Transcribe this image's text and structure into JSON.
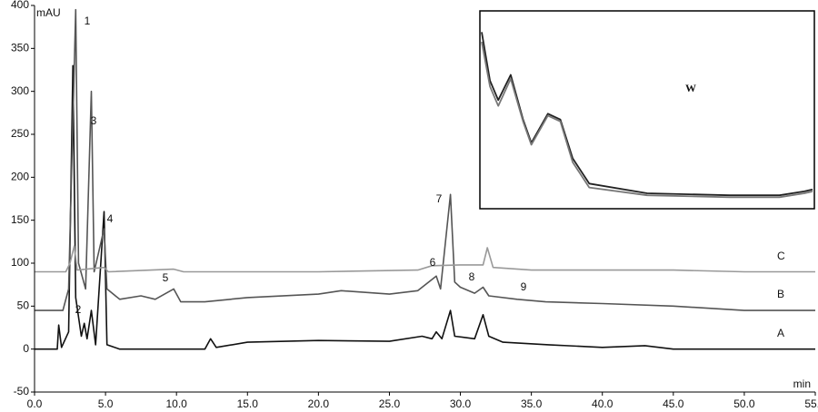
{
  "chart_data": [
    {
      "type": "line",
      "y_label": "mAU",
      "x_label": "min",
      "xlim": [
        0,
        55
      ],
      "ylim": [
        -50,
        400
      ],
      "xticks": [
        {
          "value": 0,
          "label": "0.0"
        },
        {
          "value": 5,
          "label": "5.0"
        },
        {
          "value": 10,
          "label": "10.0"
        },
        {
          "value": 15,
          "label": "15.0"
        },
        {
          "value": 20,
          "label": "20.0"
        },
        {
          "value": 25,
          "label": "25.0"
        },
        {
          "value": 30,
          "label": "30.0"
        },
        {
          "value": 35,
          "label": "35.0"
        },
        {
          "value": 40,
          "label": "40.0"
        },
        {
          "value": 45,
          "label": "45.0"
        },
        {
          "value": 50,
          "label": "50.0"
        },
        {
          "value": 55,
          "label": "55.0"
        }
      ],
      "yticks": [
        -50,
        0,
        50,
        100,
        150,
        200,
        250,
        300,
        350,
        400
      ],
      "grid": false,
      "annotations": [
        "1",
        "2",
        "3",
        "4",
        "5",
        "6",
        "7",
        "8",
        "9"
      ],
      "series": [
        {
          "name": "A",
          "color": "#111111",
          "x": [
            0,
            1.6,
            1.7,
            1.9,
            2.4,
            2.7,
            2.9,
            3.3,
            3.5,
            3.7,
            4.0,
            4.3,
            4.9,
            5.1,
            6,
            10,
            12,
            12.4,
            12.8,
            15,
            20,
            25,
            27.3,
            28,
            28.3,
            28.7,
            29.3,
            29.6,
            31,
            31.6,
            32,
            33,
            36.2,
            40,
            43,
            45,
            55
          ],
          "values": [
            0,
            0,
            28,
            2,
            20,
            330,
            60,
            15,
            30,
            12,
            45,
            5,
            160,
            5,
            0,
            0,
            0,
            12,
            2,
            8,
            10,
            9,
            15,
            12,
            20,
            12,
            45,
            15,
            12,
            40,
            15,
            8,
            5,
            2,
            4,
            0,
            0
          ]
        },
        {
          "name": "B",
          "color": "#555555",
          "x": [
            0,
            2,
            2.4,
            2.9,
            3.1,
            3.6,
            4.0,
            4.2,
            4.9,
            5.1,
            6,
            7.5,
            8.5,
            9.8,
            10.3,
            12,
            15,
            20,
            21.6,
            25,
            27,
            28.3,
            28.6,
            29.3,
            29.6,
            30,
            31,
            31.6,
            32,
            34,
            36,
            40,
            45,
            50,
            55
          ],
          "values": [
            45,
            45,
            70,
            395,
            100,
            70,
            300,
            90,
            140,
            70,
            58,
            62,
            58,
            70,
            55,
            55,
            60,
            64,
            68,
            64,
            68,
            85,
            70,
            180,
            78,
            72,
            65,
            72,
            62,
            58,
            55,
            53,
            50,
            45,
            45
          ]
        },
        {
          "name": "C",
          "color": "#999999",
          "x": [
            0,
            2.2,
            2.5,
            2.8,
            3,
            4.9,
            5.2,
            9.8,
            10.5,
            20,
            27,
            28,
            30,
            31.6,
            31.9,
            32.3,
            35,
            45,
            50,
            55
          ],
          "values": [
            90,
            90,
            100,
            120,
            92,
            95,
            90,
            93,
            90,
            90,
            92,
            97,
            98,
            98,
            118,
            95,
            92,
            92,
            90,
            90
          ]
        }
      ]
    },
    {
      "type": "line",
      "annotation": "W",
      "xlim": [
        200,
        600
      ],
      "ylim": [
        0,
        100
      ],
      "series": [
        {
          "color": "#222222",
          "x": [
            200,
            210,
            220,
            235,
            250,
            260,
            280,
            295,
            310,
            330,
            400,
            500,
            560,
            590,
            600
          ],
          "values": [
            90,
            65,
            55,
            68,
            45,
            33,
            48,
            45,
            25,
            12,
            7,
            6,
            6,
            8,
            9
          ]
        },
        {
          "color": "#777777",
          "x": [
            200,
            210,
            220,
            235,
            250,
            260,
            280,
            295,
            310,
            330,
            400,
            500,
            560,
            590,
            600
          ],
          "values": [
            85,
            62,
            52,
            66,
            44,
            32,
            47,
            44,
            23,
            10,
            6,
            5,
            5,
            7,
            8
          ]
        }
      ]
    }
  ]
}
